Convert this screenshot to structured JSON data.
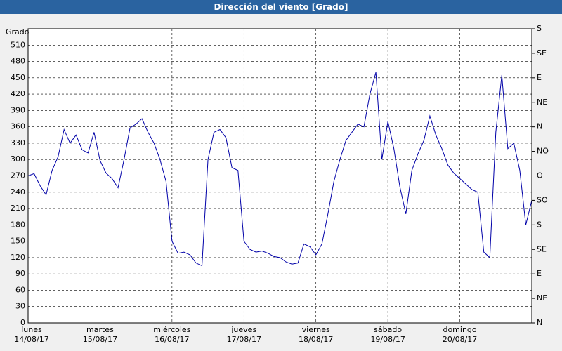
{
  "chart_data": {
    "type": "line",
    "title": "Dirección del viento [Grado]",
    "y_label": "Grado",
    "xlim": [
      0,
      84
    ],
    "xticks": [
      {
        "value": 0,
        "label": "lunes\n14/08/17"
      },
      {
        "value": 12,
        "label": "martes\n15/08/17"
      },
      {
        "value": 24,
        "label": "miércoles\n16/08/17"
      },
      {
        "value": 36,
        "label": "jueves\n17/08/17"
      },
      {
        "value": 48,
        "label": "viernes\n18/08/17"
      },
      {
        "value": 60,
        "label": "sábado\n19/08/17"
      },
      {
        "value": 72,
        "label": "domingo\n20/08/17"
      }
    ],
    "ylim": [
      0,
      540
    ],
    "yticks": [
      0,
      30,
      60,
      90,
      120,
      150,
      180,
      210,
      240,
      270,
      300,
      330,
      360,
      390,
      420,
      450,
      480,
      510
    ],
    "y2lim": [
      0,
      540
    ],
    "y2ticks": [
      {
        "value": 0,
        "label": "N"
      },
      {
        "value": 45,
        "label": "NE"
      },
      {
        "value": 90,
        "label": "E"
      },
      {
        "value": 135,
        "label": "SE"
      },
      {
        "value": 180,
        "label": "S"
      },
      {
        "value": 225,
        "label": "SO"
      },
      {
        "value": 270,
        "label": "O"
      },
      {
        "value": 315,
        "label": "NO"
      },
      {
        "value": 360,
        "label": "N"
      },
      {
        "value": 405,
        "label": "NE"
      },
      {
        "value": 450,
        "label": "E"
      },
      {
        "value": 495,
        "label": "SE"
      },
      {
        "value": 540,
        "label": "S"
      }
    ],
    "grid": true,
    "series": [
      {
        "name": "Dirección del viento",
        "color": "#0000a8",
        "values": [
          270,
          274,
          252,
          235,
          280,
          305,
          355,
          330,
          345,
          318,
          312,
          350,
          298,
          275,
          265,
          248,
          300,
          358,
          365,
          375,
          350,
          330,
          300,
          260,
          150,
          128,
          130,
          125,
          110,
          105,
          300,
          350,
          355,
          340,
          285,
          280,
          150,
          135,
          130,
          132,
          128,
          122,
          120,
          112,
          108,
          110,
          145,
          140,
          125,
          145,
          200,
          260,
          300,
          335,
          350,
          365,
          360,
          420,
          460,
          300,
          370,
          320,
          250,
          200,
          280,
          310,
          335,
          380,
          345,
          320,
          290,
          275,
          265,
          255,
          245,
          240,
          130,
          120,
          350,
          455,
          320,
          330,
          280,
          180,
          225
        ]
      }
    ]
  }
}
